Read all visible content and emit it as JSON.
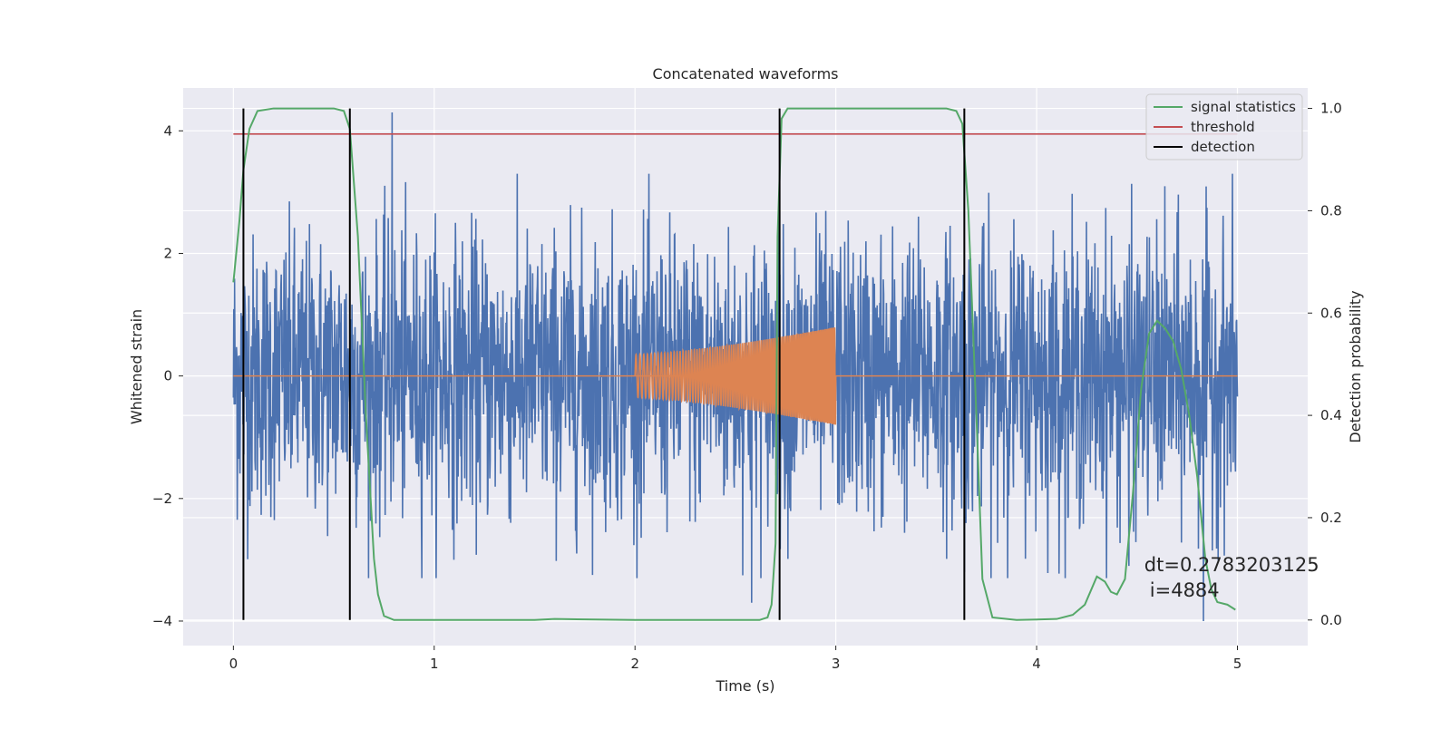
{
  "chart_data": {
    "type": "line",
    "title": "Concatenated waveforms",
    "xlabel": "Time (s)",
    "ylabel": "Whitened strain",
    "y2label": "Detection probability",
    "xlim": [
      -0.25,
      5.35
    ],
    "ylim": [
      -4.4,
      4.7
    ],
    "y2lim": [
      -0.05,
      1.04
    ],
    "x_ticks": [
      0,
      1,
      2,
      3,
      4,
      5
    ],
    "y_ticks": [
      -4,
      -2,
      0,
      2,
      4
    ],
    "y2_ticks": [
      0.0,
      0.2,
      0.4,
      0.6,
      0.8,
      1.0
    ],
    "x_tick_labels": [
      "0",
      "1",
      "2",
      "3",
      "4",
      "5"
    ],
    "y_tick_labels": [
      "−4",
      "−2",
      "0",
      "2",
      "4"
    ],
    "y2_tick_labels": [
      "0.0",
      "0.2",
      "0.4",
      "0.6",
      "0.8",
      "1.0"
    ],
    "grid": true,
    "legend_position": "top-right",
    "legend": [
      "signal statistics",
      "threshold",
      "detection"
    ],
    "colors": {
      "strain": "#4c72b0",
      "waveform": "#dd8452",
      "signal_statistics": "#55a868",
      "threshold": "#c44e52",
      "detection": "#000000",
      "background": "#eaeaf2",
      "grid": "#ffffff"
    },
    "series": [
      {
        "name": "strain",
        "axis": "left",
        "style": "noise",
        "x_range": [
          0,
          5
        ],
        "typical_amplitude": 1.2,
        "spikes": [
          [
            0.79,
            4.3
          ],
          [
            2.58,
            -3.7
          ],
          [
            3.64,
            -3.2
          ],
          [
            4.83,
            -4.0
          ],
          [
            4.46,
            -3.1
          ]
        ]
      },
      {
        "name": "waveform",
        "axis": "left",
        "style": "chirp",
        "x_range": [
          2.0,
          3.0
        ],
        "baseline_range": [
          0,
          5
        ],
        "amplitude_start": 0.35,
        "amplitude_end": 0.8
      },
      {
        "name": "signal statistics",
        "axis": "right",
        "x": [
          0,
          0.03,
          0.05,
          0.08,
          0.12,
          0.2,
          0.5,
          0.55,
          0.58,
          0.62,
          0.66,
          0.7,
          0.72,
          0.75,
          0.8,
          1.5,
          1.6,
          2.0,
          2.62,
          2.66,
          2.68,
          2.7,
          2.71,
          2.73,
          2.76,
          2.85,
          3.55,
          3.6,
          3.63,
          3.66,
          3.7,
          3.73,
          3.78,
          3.9,
          4.1,
          4.18,
          4.24,
          4.3,
          4.34,
          4.37,
          4.4,
          4.44,
          4.48,
          4.52,
          4.56,
          4.6,
          4.64,
          4.68,
          4.72,
          4.76,
          4.8,
          4.84,
          4.87,
          4.9,
          4.95,
          4.99
        ],
        "y": [
          0.66,
          0.78,
          0.88,
          0.96,
          0.995,
          1.0,
          1.0,
          0.995,
          0.96,
          0.75,
          0.4,
          0.12,
          0.05,
          0.008,
          0.0,
          0.0,
          0.002,
          0.0,
          0.0,
          0.005,
          0.03,
          0.15,
          0.75,
          0.98,
          1.0,
          1.0,
          1.0,
          0.995,
          0.97,
          0.8,
          0.4,
          0.08,
          0.005,
          0.0,
          0.002,
          0.01,
          0.03,
          0.085,
          0.075,
          0.055,
          0.05,
          0.08,
          0.25,
          0.45,
          0.56,
          0.585,
          0.57,
          0.545,
          0.49,
          0.4,
          0.28,
          0.12,
          0.06,
          0.035,
          0.03,
          0.02
        ]
      },
      {
        "name": "threshold",
        "axis": "right",
        "x": [
          0,
          5.0
        ],
        "y": [
          0.95,
          0.95
        ]
      }
    ],
    "detections": [
      0.05,
      0.58,
      2.72,
      3.64
    ],
    "annotation": {
      "line1": "dt=0.2783203125",
      "line2": "i=4884",
      "x": 4.5,
      "y": -3.1
    }
  }
}
